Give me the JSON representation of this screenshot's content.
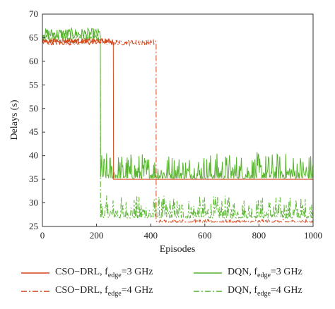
{
  "chart_data": {
    "type": "line",
    "title": "",
    "xlabel": "Episodes",
    "ylabel": "Delays (s)",
    "xlim": [
      0,
      1000
    ],
    "ylim": [
      25,
      70
    ],
    "xticks": [
      0,
      200,
      400,
      600,
      800,
      1000
    ],
    "yticks": [
      25,
      30,
      35,
      40,
      45,
      50,
      55,
      60,
      65,
      70
    ],
    "grid": false,
    "legend_position": "bottom",
    "series": [
      {
        "name_main": "CSO−DRL, f",
        "name_sub": "edge",
        "name_tail": "=3 GHz",
        "color": "#d4451a",
        "style": "solid",
        "segments": [
          {
            "x_start": 0,
            "x_end": 263,
            "y": 64.3,
            "noise": 0.5
          },
          {
            "x_start": 263,
            "x_end": 1000,
            "y": 35.0,
            "noise": 0
          }
        ]
      },
      {
        "name_main": "CSO−DRL, f",
        "name_sub": "edge",
        "name_tail": "=4 GHz",
        "color": "#d4451a",
        "style": "dashdot",
        "segments": [
          {
            "x_start": 0,
            "x_end": 420,
            "y": 64.0,
            "noise": 0.6
          },
          {
            "x_start": 420,
            "x_end": 1000,
            "y": 25.9,
            "noise": 0.15
          }
        ]
      },
      {
        "name_main": "DQN, f",
        "name_sub": "edge",
        "name_tail": "=3 GHz",
        "color": "#59b331",
        "style": "solid",
        "segments": [
          {
            "x_start": 0,
            "x_end": 215,
            "y": 65.8,
            "noise": 1.2
          },
          {
            "x_start": 215,
            "x_end": 1000,
            "y": 35.2,
            "noise": 1.4
          }
        ]
      },
      {
        "name_main": "DQN, f",
        "name_sub": "edge",
        "name_tail": "=4 GHz",
        "color": "#59b331",
        "style": "dashdot",
        "segments": [
          {
            "x_start": 0,
            "x_end": 215,
            "y": 64.8,
            "noise": 1.0
          },
          {
            "x_start": 215,
            "x_end": 1000,
            "y": 26.8,
            "noise": 1.2
          }
        ]
      }
    ]
  }
}
